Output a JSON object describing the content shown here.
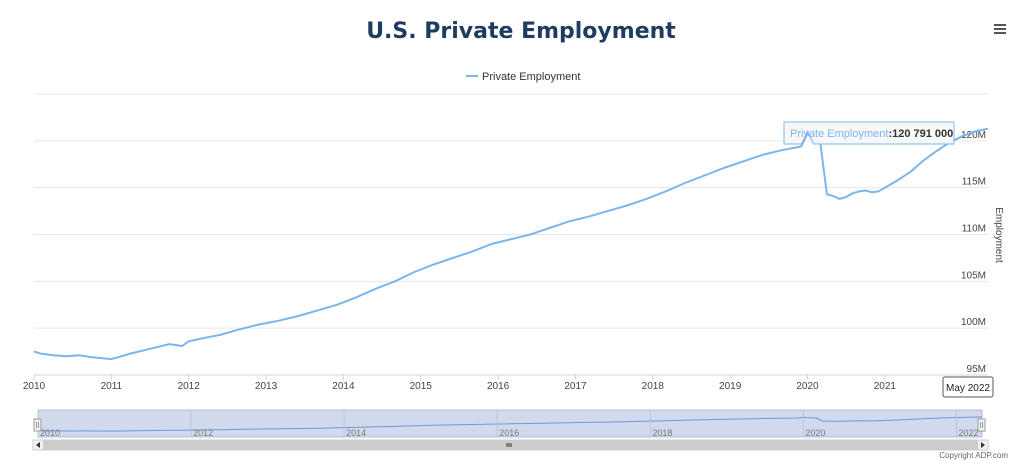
{
  "menu_icon": "hamburger-menu-icon",
  "credits": "Copyright ADP.com",
  "tooltip": {
    "series_name": "Private Employment",
    "value_text": "120 791 000",
    "x": "2020-01"
  },
  "range_label": "May 2022",
  "navigator": {
    "tick_labels": [
      "2010",
      "2012",
      "2014",
      "2016",
      "2018",
      "2020",
      "2022"
    ]
  },
  "chart_data": {
    "type": "line",
    "title": "U.S. Private Employment",
    "ylabel": "Employment",
    "legend": {
      "position": "top-center",
      "entries": [
        "Private Employment"
      ]
    },
    "grid": true,
    "x_tick_labels": [
      "2010",
      "2011",
      "2012",
      "2013",
      "2014",
      "2015",
      "2016",
      "2017",
      "2018",
      "2019",
      "2020",
      "2021",
      "2022"
    ],
    "y_tick_labels": [
      "95M",
      "100M",
      "105M",
      "110M",
      "115M",
      "120M"
    ],
    "y_ticks": [
      95000000,
      100000000,
      105000000,
      110000000,
      115000000,
      120000000
    ],
    "xlim": [
      "2010-01",
      "2022-05"
    ],
    "ylim": [
      95000000,
      125000000
    ],
    "series": [
      {
        "name": "Private Employment",
        "color": "#7cb5ec",
        "x": [
          "2010-01",
          "2010-02",
          "2010-04",
          "2010-06",
          "2010-08",
          "2010-10",
          "2011-01",
          "2011-04",
          "2011-07",
          "2011-10",
          "2011-12",
          "2012-01",
          "2012-03",
          "2012-06",
          "2012-09",
          "2012-12",
          "2013-03",
          "2013-06",
          "2013-09",
          "2013-12",
          "2014-03",
          "2014-06",
          "2014-09",
          "2014-12",
          "2015-03",
          "2015-06",
          "2015-09",
          "2015-12",
          "2016-03",
          "2016-06",
          "2016-09",
          "2016-12",
          "2017-03",
          "2017-06",
          "2017-09",
          "2017-12",
          "2018-03",
          "2018-06",
          "2018-09",
          "2018-12",
          "2019-03",
          "2019-06",
          "2019-09",
          "2019-12",
          "2020-01",
          "2020-02",
          "2020-03",
          "2020-04",
          "2020-05",
          "2020-06",
          "2020-07",
          "2020-08",
          "2020-09",
          "2020-10",
          "2020-11",
          "2020-12",
          "2021-01",
          "2021-03",
          "2021-05",
          "2021-07",
          "2021-09",
          "2021-11",
          "2022-01",
          "2022-03",
          "2022-05"
        ],
        "values": [
          97500000,
          97300000,
          97100000,
          97000000,
          97100000,
          96900000,
          96700000,
          97300000,
          97800000,
          98300000,
          98100000,
          98600000,
          98900000,
          99300000,
          99900000,
          100400000,
          100800000,
          101300000,
          101900000,
          102500000,
          103300000,
          104200000,
          105000000,
          106000000,
          106800000,
          107500000,
          108200000,
          109000000,
          109500000,
          110000000,
          110700000,
          111400000,
          111900000,
          112500000,
          113100000,
          113800000,
          114600000,
          115500000,
          116300000,
          117100000,
          117800000,
          118500000,
          119000000,
          119400000,
          120791000,
          120000000,
          119700000,
          114300000,
          114100000,
          113800000,
          114000000,
          114400000,
          114600000,
          114700000,
          114500000,
          114600000,
          115000000,
          115800000,
          116700000,
          117900000,
          118900000,
          119800000,
          120500000,
          121000000,
          121300000
        ]
      }
    ]
  }
}
